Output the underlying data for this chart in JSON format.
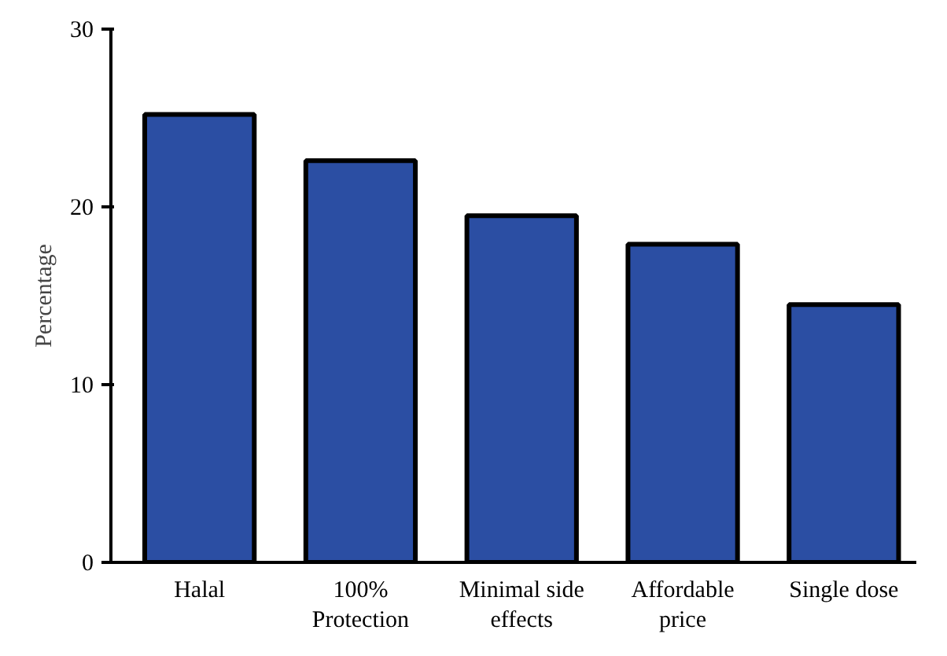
{
  "chart_data": {
    "type": "bar",
    "ylabel": "Percentage",
    "categories": [
      "Halal",
      "100%\nProtection",
      "Minimal side\neffects",
      "Affordable\nprice",
      "Single dose"
    ],
    "values": [
      25.2,
      22.6,
      19.5,
      17.9,
      14.5
    ],
    "color": "#2b4ea3",
    "ylim": [
      0,
      30
    ],
    "yticks": [
      0,
      10,
      20,
      30
    ],
    "grid": false
  }
}
